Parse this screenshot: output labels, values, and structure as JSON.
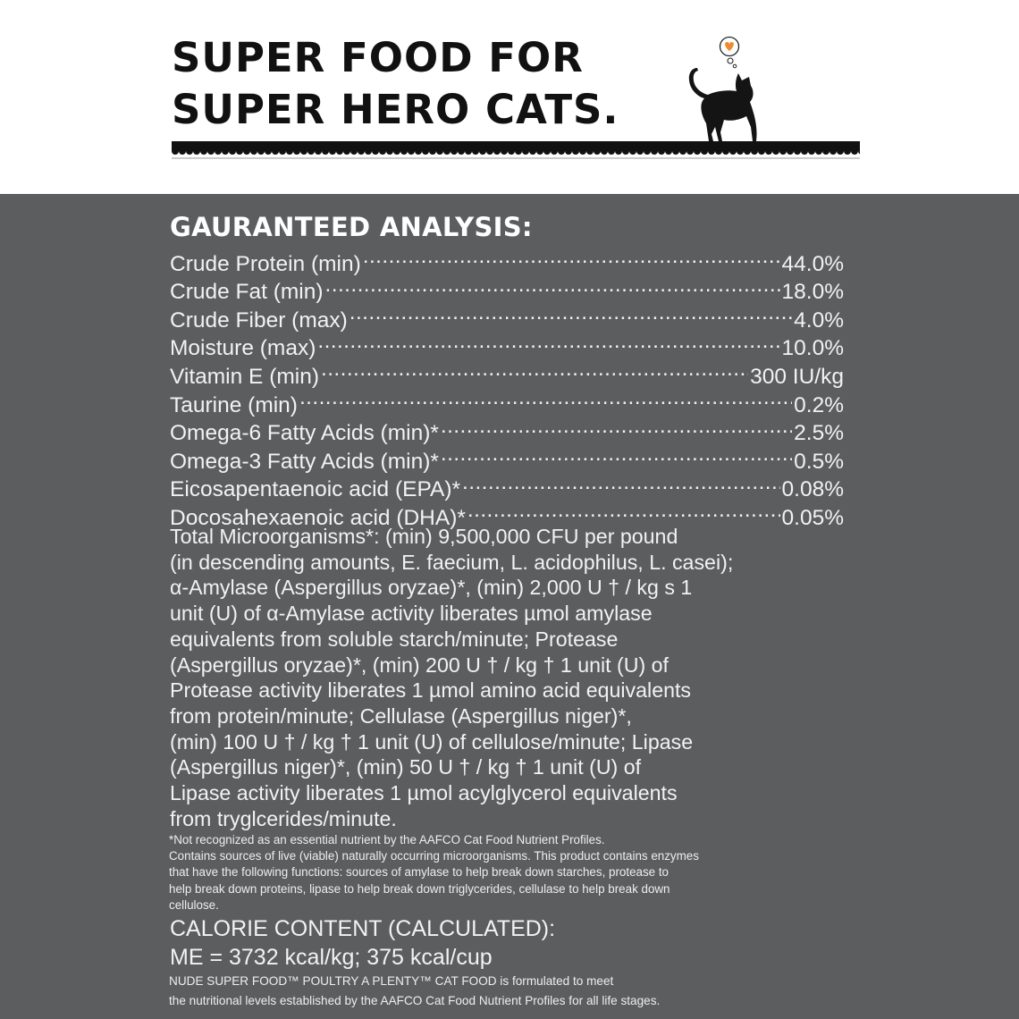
{
  "header": {
    "headline_lines": [
      "SUPER FOOD FOR",
      "SUPER HERO CATS."
    ]
  },
  "analysis": {
    "title": "GAURANTEED ANALYSIS:",
    "rows": [
      {
        "label": "Crude Protein (min)",
        "value": "44.0%"
      },
      {
        "label": "Crude Fat (min)",
        "value": "18.0%"
      },
      {
        "label": "Crude Fiber (max)",
        "value": "4.0%"
      },
      {
        "label": "Moisture (max)",
        "value": "10.0%"
      },
      {
        "label": "Vitamin E (min)",
        "value": "300 IU/kg"
      },
      {
        "label": "Taurine (min)",
        "value": "0.2%"
      },
      {
        "label": "Omega-6 Fatty Acids (min)*",
        "value": "2.5%"
      },
      {
        "label": "Omega-3 Fatty Acids (min)*",
        "value": "0.5%"
      },
      {
        "label": "Eicosapentaenoic acid (EPA)*",
        "value": "0.08%"
      },
      {
        "label": "Docosahexaenoic acid (DHA)*",
        "value": "0.05%"
      }
    ],
    "microorganisms_lines": [
      "Total Microorganisms*: (min) 9,500,000 CFU per pound",
      "(in descending amounts, E. faecium, L. acidophilus, L. casei);",
      "α-Amylase (Aspergillus oryzae)*, (min) 2,000 U † / kg s 1",
      "unit (U) of α-Amylase activity liberates µmol amylase",
      "equivalents from soluble starch/minute; Protease",
      "(Aspergillus oryzae)*, (min) 200 U † / kg † 1 unit (U) of",
      "Protease activity liberates 1 µmol amino acid equivalents",
      "from protein/minute; Cellulase (Aspergillus niger)*,",
      "(min) 100 U † / kg † 1 unit (U) of cellulose/minute; Lipase",
      "(Aspergillus niger)*, (min) 50 U † / kg † 1 unit (U) of",
      "Lipase activity liberates 1 µmol acylglycerol equivalents",
      "from tryglcerides/minute."
    ],
    "fine_print_lines": [
      "*Not recognized as an essential nutrient by the AAFCO Cat Food Nutrient Profiles.",
      "Contains sources of live (viable) naturally occurring microorganisms. This product contains enzymes",
      "that have the following functions: sources of amylase to help break down starches, protease to",
      "help break down proteins, lipase to help break down triglycerides, cellulase to help break down",
      "cellulose."
    ]
  },
  "calorie": {
    "title": "CALORIE CONTENT (CALCULATED):",
    "value": "ME = 3732 kcal/kg; 375 kcal/cup"
  },
  "footer_lines": [
    "NUDE SUPER FOOD™ POULTRY A PLENTY™ CAT FOOD is formulated to meet",
    "the nutritional levels established by the AAFCO Cat Food Nutrient Profiles for all life stages."
  ],
  "colors": {
    "panel": "#5c5d5f",
    "heart": "#f08a2c"
  },
  "icons": {
    "mascot": "cat-silhouette-icon",
    "thought": "heart-thought-bubble-icon"
  }
}
